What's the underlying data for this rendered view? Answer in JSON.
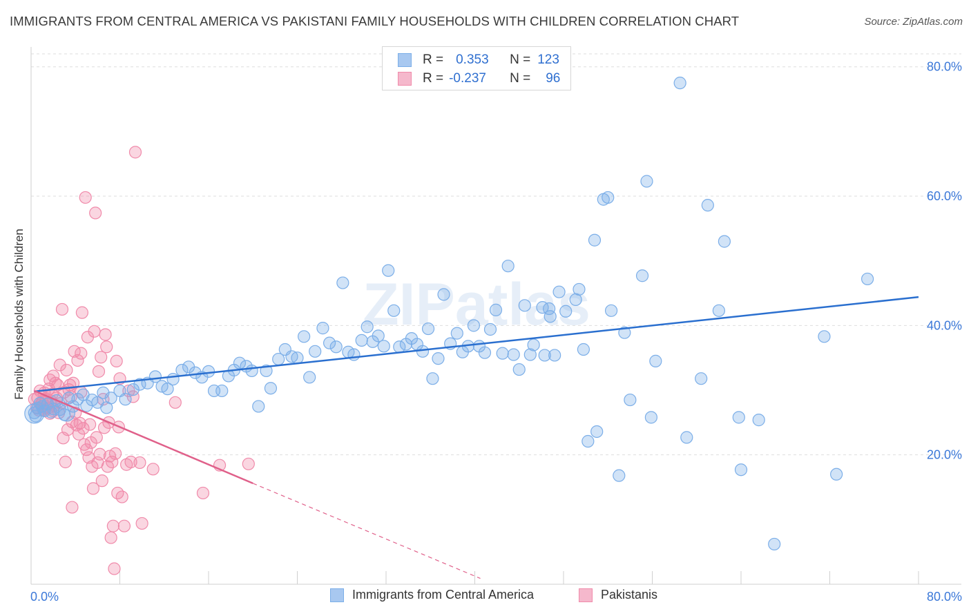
{
  "title": "IMMIGRANTS FROM CENTRAL AMERICA VS PAKISTANI FAMILY HOUSEHOLDS WITH CHILDREN CORRELATION CHART",
  "source": "Source: ZipAtlas.com",
  "watermark": "ZIPatlas",
  "legend": {
    "rows": [
      {
        "r_label": "R =",
        "r_value": "0.353",
        "n_label": "N =",
        "n_value": "123",
        "color": "#a8c8f0"
      },
      {
        "r_label": "R =",
        "r_value": "-0.237",
        "n_label": "N =",
        "n_value": "96",
        "color": "#f5b8cc"
      }
    ]
  },
  "bottom_legend": [
    {
      "label": "Immigrants from Central America",
      "color": "#a8c8f0"
    },
    {
      "label": "Pakistanis",
      "color": "#f5b8cc"
    }
  ],
  "chart_data": {
    "type": "scatter",
    "title": "IMMIGRANTS FROM CENTRAL AMERICA VS PAKISTANI FAMILY HOUSEHOLDS WITH CHILDREN CORRELATION CHART",
    "xlabel": "",
    "ylabel": "Family Households with Children",
    "xlim": [
      0,
      80
    ],
    "ylim": [
      0,
      82
    ],
    "x_tick_labels": [
      {
        "value": 0,
        "label": "0.0%"
      },
      {
        "value": 80,
        "label": "80.0%"
      }
    ],
    "y_tick_labels": [
      {
        "value": 20,
        "label": "20.0%"
      },
      {
        "value": 40,
        "label": "40.0%"
      },
      {
        "value": 60,
        "label": "60.0%"
      },
      {
        "value": 80,
        "label": "80.0%"
      }
    ],
    "x_minor_ticks": [
      8,
      16,
      24,
      32,
      40,
      48,
      56,
      64,
      72,
      80
    ],
    "series": [
      {
        "name": "Immigrants from Central America",
        "color": "#7baee8",
        "line_color": "#2a6fcf",
        "trend": {
          "x0": 0.3,
          "y0": 29.8,
          "x1": 80,
          "y1": 44.4
        },
        "points": [
          [
            0.4,
            26.0
          ],
          [
            0.6,
            27.2
          ],
          [
            0.8,
            28.0
          ],
          [
            1.0,
            27.5
          ],
          [
            1.2,
            26.8
          ],
          [
            1.5,
            27.9
          ],
          [
            1.8,
            26.6
          ],
          [
            2.0,
            27.1
          ],
          [
            2.3,
            28.4
          ],
          [
            2.6,
            27.0
          ],
          [
            3.0,
            26.2
          ],
          [
            3.4,
            28.8
          ],
          [
            3.8,
            27.5
          ],
          [
            4.2,
            28.6
          ],
          [
            4.7,
            29.3
          ],
          [
            5.0,
            27.6
          ],
          [
            5.5,
            28.5
          ],
          [
            6.0,
            28.1
          ],
          [
            6.5,
            29.6
          ],
          [
            6.8,
            27.3
          ],
          [
            7.2,
            28.8
          ],
          [
            8.0,
            29.9
          ],
          [
            8.5,
            28.6
          ],
          [
            9.2,
            30.1
          ],
          [
            9.8,
            30.9
          ],
          [
            10.5,
            31.1
          ],
          [
            11.2,
            32.1
          ],
          [
            11.8,
            30.6
          ],
          [
            12.3,
            30.2
          ],
          [
            12.8,
            31.7
          ],
          [
            13.6,
            33.1
          ],
          [
            14.2,
            33.6
          ],
          [
            14.8,
            32.7
          ],
          [
            15.4,
            32.0
          ],
          [
            16.0,
            32.9
          ],
          [
            16.5,
            29.9
          ],
          [
            17.2,
            29.9
          ],
          [
            17.8,
            32.2
          ],
          [
            18.3,
            33.1
          ],
          [
            18.8,
            34.2
          ],
          [
            19.4,
            33.7
          ],
          [
            19.9,
            33.0
          ],
          [
            20.5,
            27.5
          ],
          [
            21.2,
            33.0
          ],
          [
            21.6,
            30.3
          ],
          [
            22.3,
            34.8
          ],
          [
            22.9,
            36.3
          ],
          [
            23.5,
            35.2
          ],
          [
            24.0,
            35.0
          ],
          [
            24.6,
            38.3
          ],
          [
            25.1,
            32.0
          ],
          [
            25.6,
            36.0
          ],
          [
            26.3,
            39.6
          ],
          [
            26.9,
            37.3
          ],
          [
            27.5,
            36.7
          ],
          [
            28.1,
            46.6
          ],
          [
            28.6,
            35.9
          ],
          [
            29.1,
            35.5
          ],
          [
            29.8,
            37.7
          ],
          [
            30.3,
            39.8
          ],
          [
            30.8,
            37.5
          ],
          [
            31.3,
            38.4
          ],
          [
            31.8,
            36.8
          ],
          [
            32.2,
            48.5
          ],
          [
            32.7,
            42.3
          ],
          [
            33.2,
            36.7
          ],
          [
            33.8,
            37.1
          ],
          [
            34.3,
            38.0
          ],
          [
            34.8,
            37.1
          ],
          [
            35.3,
            36.0
          ],
          [
            35.8,
            39.5
          ],
          [
            36.2,
            31.8
          ],
          [
            36.7,
            34.9
          ],
          [
            37.2,
            44.8
          ],
          [
            37.8,
            37.2
          ],
          [
            38.4,
            38.8
          ],
          [
            38.9,
            35.9
          ],
          [
            39.4,
            36.8
          ],
          [
            39.9,
            40.0
          ],
          [
            40.4,
            36.8
          ],
          [
            40.9,
            35.8
          ],
          [
            41.4,
            39.4
          ],
          [
            41.9,
            42.4
          ],
          [
            42.5,
            35.7
          ],
          [
            43.0,
            49.2
          ],
          [
            43.5,
            35.5
          ],
          [
            44.0,
            33.2
          ],
          [
            44.5,
            43.1
          ],
          [
            45.0,
            35.5
          ],
          [
            45.3,
            37.0
          ],
          [
            46.1,
            42.8
          ],
          [
            46.3,
            35.4
          ],
          [
            46.7,
            42.6
          ],
          [
            46.8,
            41.4
          ],
          [
            47.2,
            35.4
          ],
          [
            47.6,
            45.2
          ],
          [
            48.2,
            42.2
          ],
          [
            49.1,
            44.0
          ],
          [
            49.4,
            45.6
          ],
          [
            49.8,
            36.3
          ],
          [
            50.2,
            22.1
          ],
          [
            50.8,
            53.2
          ],
          [
            51.0,
            23.6
          ],
          [
            51.6,
            59.5
          ],
          [
            52.0,
            59.8
          ],
          [
            52.3,
            42.3
          ],
          [
            53.0,
            16.8
          ],
          [
            53.5,
            38.9
          ],
          [
            54.0,
            28.5
          ],
          [
            55.1,
            47.7
          ],
          [
            55.5,
            62.3
          ],
          [
            55.9,
            25.8
          ],
          [
            56.3,
            34.5
          ],
          [
            58.5,
            77.5
          ],
          [
            59.1,
            22.7
          ],
          [
            60.4,
            31.8
          ],
          [
            61.0,
            58.6
          ],
          [
            62.0,
            42.3
          ],
          [
            62.5,
            53.0
          ],
          [
            63.8,
            25.8
          ],
          [
            64.0,
            17.7
          ],
          [
            65.6,
            25.4
          ],
          [
            67.0,
            6.2
          ],
          [
            71.5,
            38.3
          ],
          [
            72.6,
            17.0
          ],
          [
            75.4,
            47.2
          ],
          [
            0.3,
            26.5
          ]
        ]
      },
      {
        "name": "Pakistanis",
        "color": "#f08aaa",
        "line_color": "#e0608a",
        "trend": {
          "x0": 0.3,
          "y0": 29.9,
          "x1": 20,
          "y1": 15.6
        },
        "trend_dashed": {
          "x0": 20,
          "y0": 15.6,
          "x1": 40.5,
          "y1": 0.9
        },
        "points": [
          [
            0.3,
            28.6
          ],
          [
            0.5,
            27.3
          ],
          [
            0.6,
            28.8
          ],
          [
            0.7,
            26.9
          ],
          [
            0.8,
            29.9
          ],
          [
            0.9,
            27.8
          ],
          [
            1.0,
            28.2
          ],
          [
            1.1,
            27.0
          ],
          [
            1.2,
            26.8
          ],
          [
            1.3,
            28.7
          ],
          [
            1.4,
            27.5
          ],
          [
            1.5,
            27.2
          ],
          [
            1.6,
            30.2
          ],
          [
            1.7,
            26.4
          ],
          [
            1.8,
            28.3
          ],
          [
            1.9,
            29.4
          ],
          [
            2.0,
            26.8
          ],
          [
            2.1,
            27.6
          ],
          [
            2.2,
            31.1
          ],
          [
            2.3,
            28.8
          ],
          [
            2.4,
            30.8
          ],
          [
            2.5,
            26.5
          ],
          [
            2.6,
            33.9
          ],
          [
            2.7,
            28.0
          ],
          [
            2.8,
            42.5
          ],
          [
            2.9,
            22.6
          ],
          [
            3.0,
            29.7
          ],
          [
            3.2,
            33.1
          ],
          [
            3.3,
            23.9
          ],
          [
            3.4,
            30.1
          ],
          [
            3.5,
            30.8
          ],
          [
            3.6,
            29.0
          ],
          [
            3.7,
            25.1
          ],
          [
            3.8,
            31.1
          ],
          [
            3.9,
            36.0
          ],
          [
            4.0,
            26.5
          ],
          [
            4.1,
            24.6
          ],
          [
            4.2,
            34.6
          ],
          [
            4.3,
            23.2
          ],
          [
            4.4,
            24.9
          ],
          [
            4.5,
            35.7
          ],
          [
            4.6,
            42.0
          ],
          [
            4.7,
            24.1
          ],
          [
            4.8,
            21.6
          ],
          [
            4.9,
            59.8
          ],
          [
            5.0,
            20.8
          ],
          [
            5.1,
            38.2
          ],
          [
            5.2,
            19.6
          ],
          [
            5.3,
            24.7
          ],
          [
            5.4,
            21.9
          ],
          [
            5.5,
            18.2
          ],
          [
            5.6,
            14.8
          ],
          [
            5.7,
            39.1
          ],
          [
            5.8,
            57.4
          ],
          [
            5.9,
            22.7
          ],
          [
            6.0,
            18.8
          ],
          [
            6.1,
            32.9
          ],
          [
            6.2,
            20.1
          ],
          [
            6.3,
            35.1
          ],
          [
            6.4,
            16.0
          ],
          [
            6.5,
            28.6
          ],
          [
            6.6,
            24.2
          ],
          [
            6.7,
            38.6
          ],
          [
            6.8,
            36.7
          ],
          [
            6.9,
            18.2
          ],
          [
            7.0,
            25.0
          ],
          [
            7.1,
            19.8
          ],
          [
            7.2,
            7.2
          ],
          [
            7.3,
            18.9
          ],
          [
            7.4,
            9.0
          ],
          [
            7.5,
            2.4
          ],
          [
            7.6,
            20.2
          ],
          [
            7.7,
            34.5
          ],
          [
            7.8,
            14.1
          ],
          [
            7.9,
            24.3
          ],
          [
            8.0,
            31.8
          ],
          [
            8.2,
            13.5
          ],
          [
            8.4,
            9.0
          ],
          [
            8.6,
            18.5
          ],
          [
            8.8,
            29.9
          ],
          [
            9.0,
            18.9
          ],
          [
            9.2,
            29.0
          ],
          [
            9.4,
            66.8
          ],
          [
            9.8,
            18.8
          ],
          [
            10.0,
            9.4
          ],
          [
            11.0,
            17.8
          ],
          [
            13.0,
            28.1
          ],
          [
            15.5,
            14.1
          ],
          [
            17.0,
            18.4
          ],
          [
            19.6,
            18.6
          ],
          [
            3.1,
            18.9
          ],
          [
            3.7,
            11.9
          ],
          [
            4.5,
            29.7
          ],
          [
            1.2,
            29.6
          ],
          [
            2.0,
            32.2
          ],
          [
            1.7,
            31.6
          ]
        ]
      }
    ]
  }
}
